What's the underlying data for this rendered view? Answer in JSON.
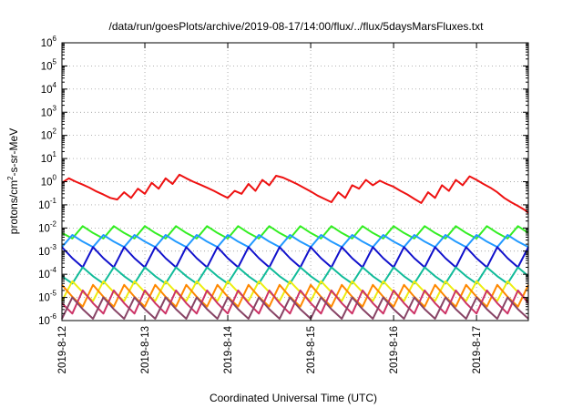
{
  "chart_data": {
    "type": "line",
    "title": "/data/run/goesPlots/archive/2019-08-17/14:00/flux/../flux/5daysMarsFluxes.txt",
    "xlabel": "Coordinated Universal Time (UTC)",
    "ylabel": "protons/cm²-s-sr-MeV",
    "ylabel_parts": {
      "before": "protons/cm",
      "sup": "2",
      "after": "-s-sr-MeV"
    },
    "yscale": "log",
    "ylim": [
      "1e-6",
      "1e6"
    ],
    "xlim": [
      "2019-08-12",
      "2019-08-17 15:00"
    ],
    "grid": true,
    "x_ticks": [
      "2019-8-12",
      "2019-8-13",
      "2019-8-14",
      "2019-8-15",
      "2019-8-16",
      "2019-8-17"
    ],
    "y_ticks": [
      {
        "base": "10",
        "exp": "6"
      },
      {
        "base": "10",
        "exp": "5"
      },
      {
        "base": "10",
        "exp": "4"
      },
      {
        "base": "10",
        "exp": "3"
      },
      {
        "base": "10",
        "exp": "2"
      },
      {
        "base": "10",
        "exp": "1"
      },
      {
        "base": "10",
        "exp": "0"
      },
      {
        "base": "10",
        "exp": "-1"
      },
      {
        "base": "10",
        "exp": "-2"
      },
      {
        "base": "10",
        "exp": "-3"
      },
      {
        "base": "10",
        "exp": "-4"
      },
      {
        "base": "10",
        "exp": "-5"
      },
      {
        "base": "10",
        "exp": "-6"
      }
    ],
    "series": [
      {
        "color": "#ee1111",
        "x": [
          "2019-08-12 00:00",
          "2019-08-12 02:00",
          "2019-08-12 04:00",
          "2019-08-12 06:00",
          "2019-08-12 08:00",
          "2019-08-12 10:00",
          "2019-08-12 12:00",
          "2019-08-12 14:00",
          "2019-08-12 16:00",
          "2019-08-12 18:00",
          "2019-08-12 20:00",
          "2019-08-12 22:00",
          "2019-08-13 00:00",
          "2019-08-13 02:00",
          "2019-08-13 04:00",
          "2019-08-13 06:00",
          "2019-08-13 08:00",
          "2019-08-13 10:00",
          "2019-08-13 12:00",
          "2019-08-13 14:00",
          "2019-08-13 16:00",
          "2019-08-13 18:00",
          "2019-08-13 20:00",
          "2019-08-13 22:00",
          "2019-08-14 00:00",
          "2019-08-14 02:00",
          "2019-08-14 04:00",
          "2019-08-14 06:00",
          "2019-08-14 08:00",
          "2019-08-14 10:00",
          "2019-08-14 12:00",
          "2019-08-14 14:00",
          "2019-08-14 16:00",
          "2019-08-14 18:00",
          "2019-08-14 20:00",
          "2019-08-14 22:00",
          "2019-08-15 00:00",
          "2019-08-15 02:00",
          "2019-08-15 04:00",
          "2019-08-15 06:00",
          "2019-08-15 08:00",
          "2019-08-15 10:00",
          "2019-08-15 12:00",
          "2019-08-15 14:00",
          "2019-08-15 16:00",
          "2019-08-15 18:00",
          "2019-08-15 20:00",
          "2019-08-15 22:00",
          "2019-08-16 00:00",
          "2019-08-16 02:00",
          "2019-08-16 04:00",
          "2019-08-16 06:00",
          "2019-08-16 08:00",
          "2019-08-16 10:00",
          "2019-08-16 12:00",
          "2019-08-16 14:00",
          "2019-08-16 16:00",
          "2019-08-16 18:00",
          "2019-08-16 20:00",
          "2019-08-16 22:00",
          "2019-08-17 00:00",
          "2019-08-17 02:00",
          "2019-08-17 04:00",
          "2019-08-17 06:00",
          "2019-08-17 08:00",
          "2019-08-17 10:00",
          "2019-08-17 12:00",
          "2019-08-17 14:00",
          "2019-08-17 15:00"
        ],
        "y": [
          0.9,
          1.4,
          1.0,
          0.75,
          0.55,
          0.38,
          0.28,
          0.2,
          0.17,
          0.35,
          0.2,
          0.5,
          0.3,
          0.9,
          0.5,
          1.4,
          0.8,
          2.0,
          1.4,
          1.0,
          0.75,
          0.55,
          0.4,
          0.28,
          0.2,
          0.4,
          0.3,
          0.8,
          0.4,
          1.2,
          0.7,
          1.8,
          1.5,
          1.1,
          0.8,
          0.55,
          0.38,
          0.25,
          0.18,
          0.13,
          0.35,
          0.2,
          0.7,
          0.5,
          1.2,
          0.7,
          1.1,
          0.8,
          0.6,
          0.4,
          0.28,
          0.18,
          0.12,
          0.35,
          0.2,
          0.7,
          0.4,
          1.2,
          0.7,
          1.7,
          1.2,
          0.8,
          0.55,
          0.35,
          0.2,
          0.13,
          0.09,
          0.06,
          0.045
        ]
      },
      {
        "color": "#33ee22",
        "y_high": 0.012,
        "y_low": 0.0035
      },
      {
        "color": "#2299ff",
        "y_high": 0.005,
        "y_low": 0.0015
      },
      {
        "color": "#1111cc",
        "y_high": 0.0015,
        "y_low": 0.0002
      },
      {
        "color": "#11bb99",
        "y_high": 0.0002,
        "y_low": 4e-05
      },
      {
        "color": "#eeee11",
        "y_high": 5e-05,
        "y_low": 7e-06
      },
      {
        "color": "#ff8800",
        "y_high": 3.5e-05,
        "y_low": 4e-06
      },
      {
        "color": "#cc3366",
        "y_high": 2e-05,
        "y_low": 2e-06
      },
      {
        "color": "#884466",
        "y_high": 1e-05,
        "y_low": 1.2e-06
      }
    ]
  }
}
